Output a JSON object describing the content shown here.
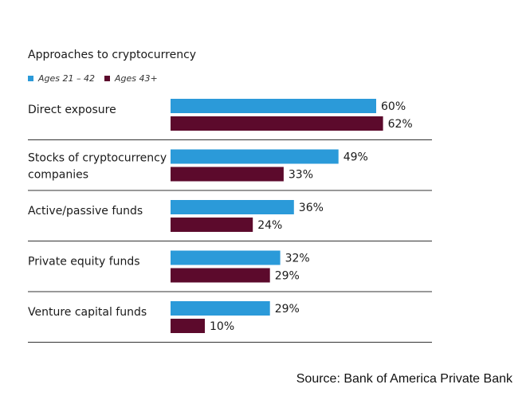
{
  "chart_data": {
    "type": "bar",
    "orientation": "horizontal",
    "title": "Approaches to cryptocurrency",
    "categories": [
      [
        "Direct exposure"
      ],
      [
        "Stocks of cryptocurrency",
        "companies"
      ],
      [
        "Active/passive funds"
      ],
      [
        "Private equity funds"
      ],
      [
        "Venture capital funds"
      ]
    ],
    "series": [
      {
        "name": "Ages 21 – 42",
        "color": "#2b9ad9",
        "values": [
          60,
          49,
          36,
          32,
          29
        ],
        "labels": [
          "60%",
          "49%",
          "36%",
          "32%",
          "29%"
        ]
      },
      {
        "name": "Ages 43+",
        "color": "#5c0a2c",
        "values": [
          62,
          33,
          24,
          29,
          10
        ],
        "labels": [
          "62%",
          "33%",
          "24%",
          "29%",
          "10%"
        ]
      }
    ],
    "xlim": [
      0,
      100
    ],
    "legend": "top-left",
    "grid": false
  },
  "source": "Source: Bank of America Private Bank"
}
